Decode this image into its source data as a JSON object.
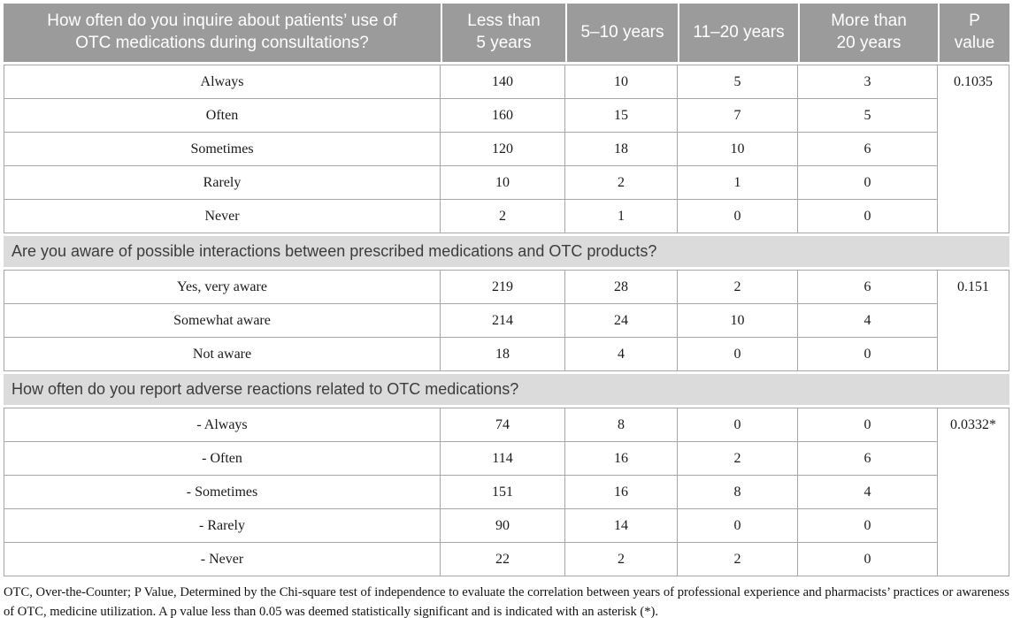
{
  "colors": {
    "header_bg": "#9b9b9b",
    "header_text": "#ffffff",
    "section_bg": "#dbdbdb",
    "border": "#a6a6a6",
    "body_text": "#1a1a1a"
  },
  "table": {
    "columns": [
      "How often do you inquire about patients’ use of\nOTC medications during consultations?",
      "Less than\n5 years",
      "5–10 years",
      "11–20 years",
      "More than\n20 years",
      "P\nvalue"
    ],
    "sections": [
      {
        "header": null,
        "p_value": "0.1035",
        "rows": [
          {
            "label": "Always",
            "values": [
              "140",
              "10",
              "5",
              "3"
            ]
          },
          {
            "label": "Often",
            "values": [
              "160",
              "15",
              "7",
              "5"
            ]
          },
          {
            "label": "Sometimes",
            "values": [
              "120",
              "18",
              "10",
              "6"
            ]
          },
          {
            "label": "Rarely",
            "values": [
              "10",
              "2",
              "1",
              "0"
            ]
          },
          {
            "label": "Never",
            "values": [
              "2",
              "1",
              "0",
              "0"
            ]
          }
        ]
      },
      {
        "header": "Are you aware of possible interactions between prescribed medications and OTC products?",
        "p_value": "0.151",
        "rows": [
          {
            "label": "Yes, very aware",
            "values": [
              "219",
              "28",
              "2",
              "6"
            ]
          },
          {
            "label": "Somewhat aware",
            "values": [
              "214",
              "24",
              "10",
              "4"
            ]
          },
          {
            "label": "Not aware",
            "values": [
              "18",
              "4",
              "0",
              "0"
            ]
          }
        ]
      },
      {
        "header": "How often do you report adverse reactions related to OTC medications?",
        "p_value": "0.0332*",
        "rows": [
          {
            "label": "- Always",
            "values": [
              "74",
              "8",
              "0",
              "0"
            ]
          },
          {
            "label": "- Often",
            "values": [
              "114",
              "16",
              "2",
              "6"
            ]
          },
          {
            "label": "- Sometimes",
            "values": [
              "151",
              "16",
              "8",
              "4"
            ]
          },
          {
            "label": "- Rarely",
            "values": [
              "90",
              "14",
              "0",
              "0"
            ]
          },
          {
            "label": "- Never",
            "values": [
              "22",
              "2",
              "2",
              "0"
            ]
          }
        ]
      }
    ],
    "footnote": "OTC, Over-the-Counter; P Value, Determined by the Chi-square test of independence to evaluate the correlation between years of professional experience and pharmacists’ practices or awareness of OTC, medicine utilization. A p value less than 0.05 was deemed statistically significant and is indicated with an asterisk (*)."
  }
}
